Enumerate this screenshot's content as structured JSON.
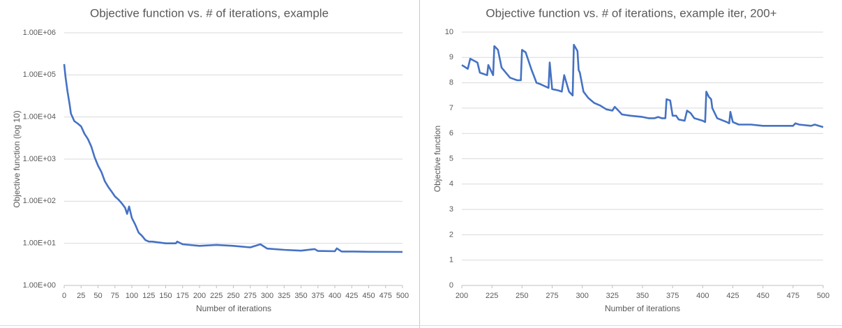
{
  "chart_data": [
    {
      "type": "line",
      "title": "Objective function vs. # of iterations, example",
      "xlabel": "Number of iterations",
      "ylabel": "Objective function (log 10)",
      "yscale": "log",
      "grid": true,
      "xlim": [
        0,
        500
      ],
      "xticks": [
        0,
        25,
        50,
        75,
        100,
        125,
        150,
        175,
        200,
        225,
        250,
        275,
        300,
        325,
        350,
        375,
        400,
        425,
        450,
        475,
        500
      ],
      "ylim": [
        1,
        1000000
      ],
      "yticks": [
        {
          "value": 1,
          "label": "1.00E+00"
        },
        {
          "value": 10,
          "label": "1.00E+01"
        },
        {
          "value": 100,
          "label": "1.00E+02"
        },
        {
          "value": 1000,
          "label": "1.00E+03"
        },
        {
          "value": 10000,
          "label": "1.00E+04"
        },
        {
          "value": 100000,
          "label": "1.00E+05"
        },
        {
          "value": 1000000,
          "label": "1.00E+06"
        }
      ],
      "series": [
        {
          "color": "#4472c4",
          "x": [
            0,
            2,
            5,
            8,
            10,
            15,
            20,
            25,
            30,
            35,
            40,
            45,
            50,
            55,
            60,
            65,
            70,
            75,
            80,
            85,
            90,
            93,
            96,
            100,
            105,
            110,
            115,
            120,
            125,
            130,
            140,
            150,
            165,
            167,
            175,
            200,
            225,
            250,
            275,
            290,
            300,
            325,
            350,
            370,
            375,
            400,
            403,
            410,
            425,
            450,
            500
          ],
          "values": [
            180000,
            90000,
            40000,
            20000,
            12000,
            8000,
            7000,
            6000,
            4000,
            3000,
            2000,
            1100,
            700,
            500,
            300,
            220,
            170,
            130,
            110,
            90,
            70,
            50,
            75,
            40,
            28,
            18,
            15,
            12,
            11,
            11,
            10.5,
            10,
            10,
            11,
            9.5,
            8.7,
            9.2,
            8.7,
            8,
            9.5,
            7.5,
            7,
            6.7,
            7.3,
            6.6,
            6.5,
            7.6,
            6.4,
            6.4,
            6.3,
            6.25
          ]
        }
      ]
    },
    {
      "type": "line",
      "title": "Objective function vs. # of iterations, example iter, 200+",
      "xlabel": "Number of iterations",
      "ylabel": "Objective function",
      "yscale": "linear",
      "grid": true,
      "xlim": [
        200,
        500
      ],
      "xticks": [
        200,
        225,
        250,
        275,
        300,
        325,
        350,
        375,
        400,
        425,
        450,
        475,
        500
      ],
      "ylim": [
        0,
        10
      ],
      "yticks": [
        0,
        1,
        2,
        3,
        4,
        5,
        6,
        7,
        8,
        9,
        10
      ],
      "series": [
        {
          "color": "#4472c4",
          "x": [
            200,
            205,
            207,
            213,
            215,
            221,
            222,
            226,
            227,
            230,
            233,
            240,
            243,
            246,
            249,
            250,
            253,
            258,
            262,
            265,
            272,
            273,
            275,
            280,
            283,
            285,
            289,
            292,
            293,
            296,
            297,
            298,
            301,
            305,
            310,
            315,
            320,
            325,
            327,
            330,
            333,
            340,
            350,
            355,
            360,
            363,
            366,
            369,
            370,
            373,
            375,
            378,
            380,
            385,
            387,
            390,
            393,
            400,
            402,
            403,
            405,
            407,
            408,
            412,
            420,
            422,
            423,
            425,
            430,
            440,
            450,
            460,
            470,
            475,
            477,
            480,
            490,
            493,
            500
          ],
          "values": [
            8.7,
            8.55,
            8.95,
            8.8,
            8.4,
            8.3,
            8.7,
            8.3,
            9.45,
            9.3,
            8.6,
            8.2,
            8.15,
            8.1,
            8.1,
            9.3,
            9.2,
            8.5,
            8.0,
            7.95,
            7.8,
            8.8,
            7.75,
            7.7,
            7.65,
            8.3,
            7.65,
            7.5,
            9.5,
            9.25,
            8.5,
            8.4,
            7.65,
            7.4,
            7.2,
            7.1,
            6.95,
            6.9,
            7.05,
            6.9,
            6.75,
            6.7,
            6.65,
            6.6,
            6.6,
            6.65,
            6.6,
            6.6,
            7.35,
            7.3,
            6.7,
            6.7,
            6.55,
            6.5,
            6.9,
            6.8,
            6.6,
            6.5,
            6.45,
            7.65,
            7.45,
            7.35,
            7.0,
            6.6,
            6.45,
            6.4,
            6.85,
            6.45,
            6.35,
            6.35,
            6.3,
            6.3,
            6.3,
            6.3,
            6.4,
            6.35,
            6.3,
            6.35,
            6.25
          ]
        }
      ]
    }
  ]
}
